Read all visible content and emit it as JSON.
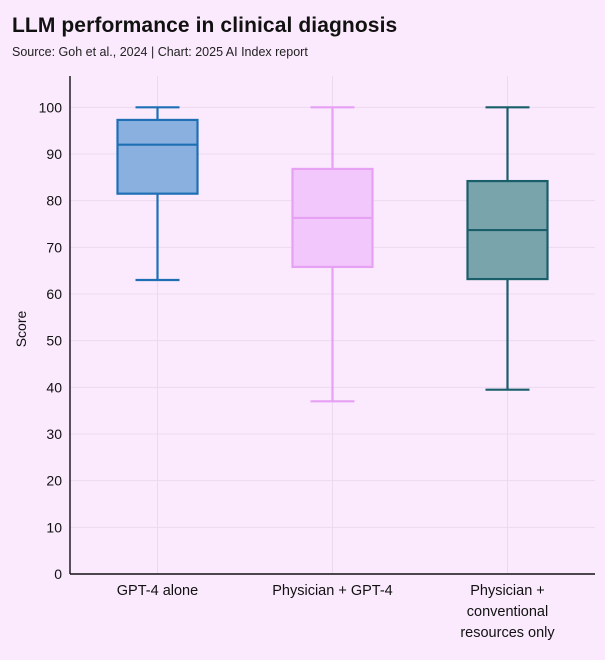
{
  "header": {
    "title": "LLM performance in clinical diagnosis",
    "subtitle": "Source: Goh et al., 2024 | Chart: 2025 AI Index report"
  },
  "chart_data": {
    "type": "boxplot",
    "title": "LLM performance in clinical diagnosis",
    "subtitle": "Source: Goh et al., 2024 | Chart: 2025 AI Index report",
    "xlabel": "",
    "ylabel": "Score",
    "ylim": [
      0,
      105
    ],
    "yticks": [
      0,
      10,
      20,
      30,
      40,
      50,
      60,
      70,
      80,
      90,
      100
    ],
    "grid": true,
    "categories": [
      {
        "label_lines": [
          "GPT-4 alone"
        ],
        "min": 63,
        "q1": 81.5,
        "median": 92,
        "q3": 97.3,
        "max": 100,
        "fill": "#8ab0e0",
        "stroke": "#1f6fb5"
      },
      {
        "label_lines": [
          "Physician + GPT-4"
        ],
        "min": 37,
        "q1": 65.8,
        "median": 76.3,
        "q3": 86.8,
        "max": 100,
        "fill": "#f2c7fb",
        "stroke": "#e6a0f4"
      },
      {
        "label_lines": [
          "Physician +",
          "conventional",
          "resources only"
        ],
        "min": 39.5,
        "q1": 63.2,
        "median": 73.7,
        "q3": 84.2,
        "max": 100,
        "fill": "#7aa4ac",
        "stroke": "#1a5e6a"
      }
    ]
  }
}
